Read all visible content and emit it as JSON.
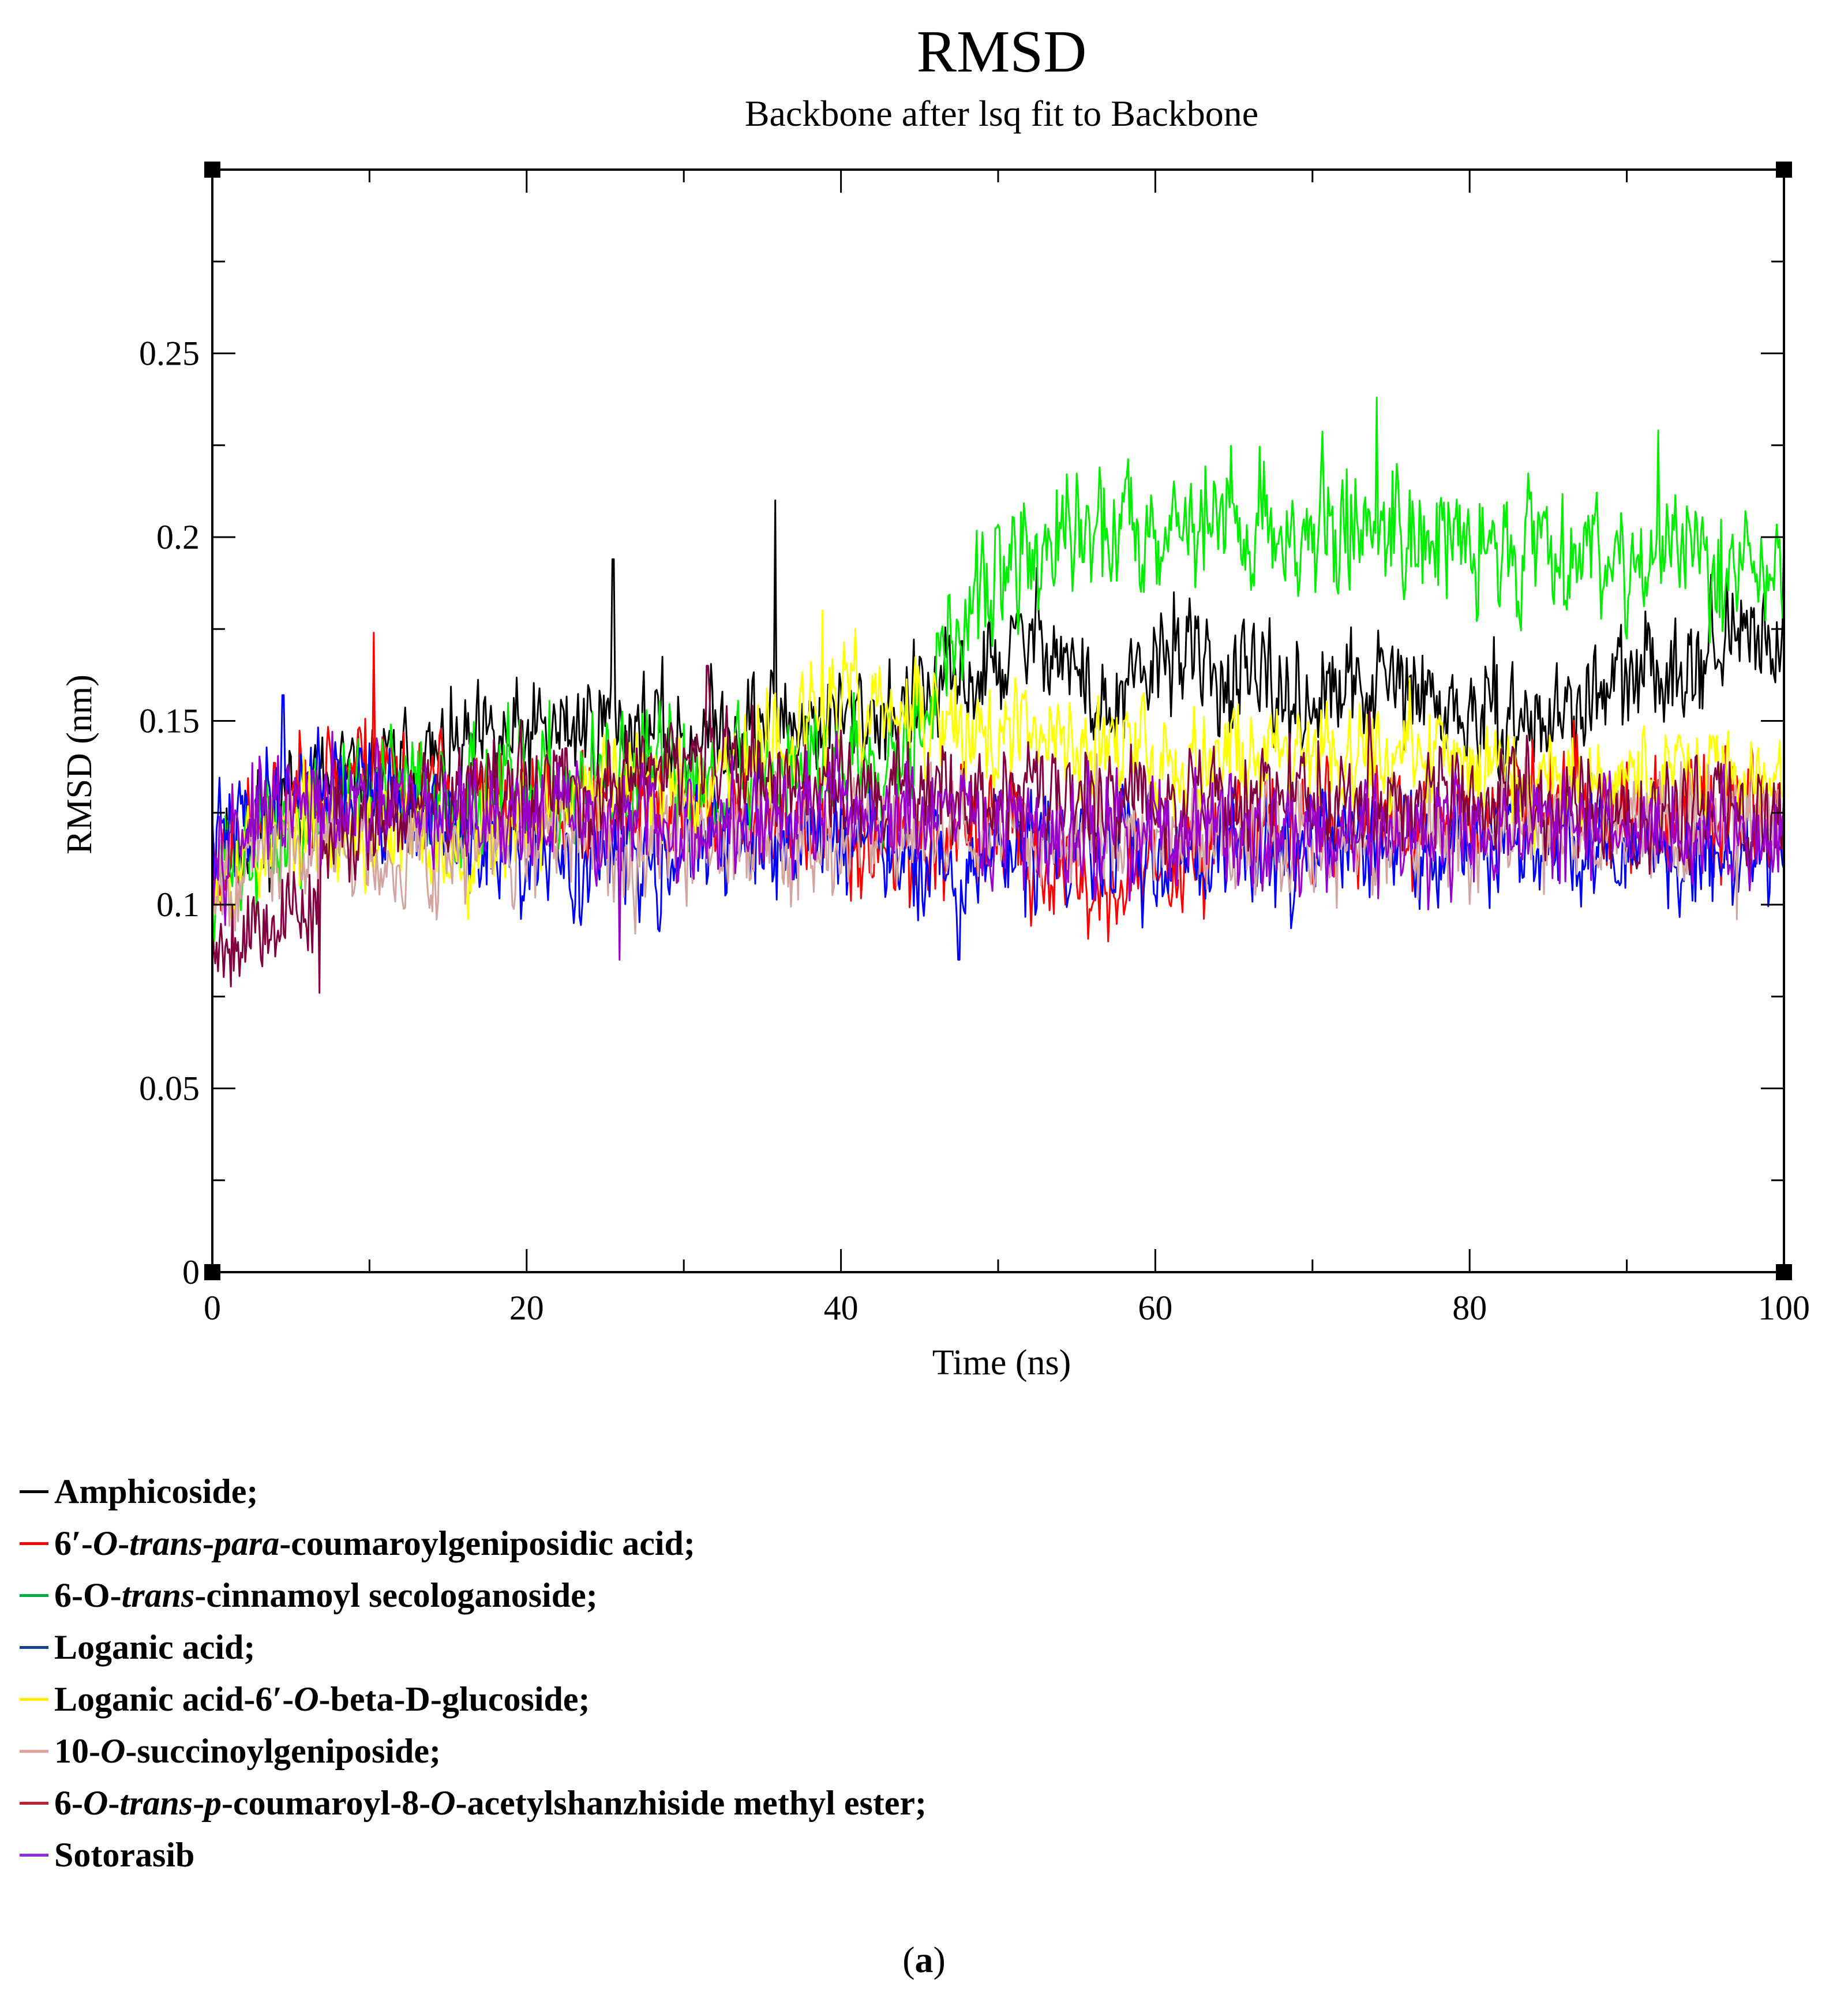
{
  "chart_data": {
    "type": "line",
    "title": "RMSD",
    "subtitle": "Backbone after lsq fit to Backbone",
    "xlabel": "Time (ns)",
    "ylabel": "RMSD (nm)",
    "xlim": [
      0,
      100
    ],
    "ylim": [
      0,
      0.3
    ],
    "xticks": [
      0,
      20,
      40,
      60,
      80,
      100
    ],
    "xtick_labels": [
      "0",
      "20",
      "40",
      "60",
      "80",
      "100"
    ],
    "yticks": [
      0,
      0.05,
      0.1,
      0.15,
      0.2,
      0.25
    ],
    "ytick_labels": [
      "0",
      "0.05",
      "0.1",
      "0.15",
      "0.2",
      "0.25"
    ],
    "x_minor_step": 10,
    "y_minor_step": 0.025,
    "legend_position": "below",
    "series": [
      {
        "name": "Amphicoside",
        "color": "#000000",
        "noise": 0.011,
        "seed": 11,
        "keyframes": [
          [
            0,
            0.11
          ],
          [
            5,
            0.13
          ],
          [
            10,
            0.135
          ],
          [
            15,
            0.14
          ],
          [
            20,
            0.145
          ],
          [
            25,
            0.15
          ],
          [
            30,
            0.145
          ],
          [
            35,
            0.15
          ],
          [
            40,
            0.15
          ],
          [
            45,
            0.155
          ],
          [
            50,
            0.165
          ],
          [
            53,
            0.175
          ],
          [
            57,
            0.15
          ],
          [
            61,
            0.17
          ],
          [
            65,
            0.16
          ],
          [
            70,
            0.155
          ],
          [
            75,
            0.16
          ],
          [
            80,
            0.15
          ],
          [
            85,
            0.15
          ],
          [
            90,
            0.16
          ],
          [
            95,
            0.17
          ],
          [
            100,
            0.175
          ]
        ],
        "spikes": [
          [
            25.5,
            0.194
          ],
          [
            35.8,
            0.21
          ],
          [
            61.2,
            0.185
          ],
          [
            100,
            0.2
          ]
        ]
      },
      {
        "name": "6′-O-trans-para-coumaroylgeniposidic acid",
        "color": "#ff0000",
        "noise": 0.011,
        "seed": 23,
        "keyframes": [
          [
            0,
            0.11
          ],
          [
            5,
            0.13
          ],
          [
            10,
            0.14
          ],
          [
            15,
            0.13
          ],
          [
            20,
            0.125
          ],
          [
            30,
            0.125
          ],
          [
            40,
            0.12
          ],
          [
            45,
            0.115
          ],
          [
            50,
            0.12
          ],
          [
            55,
            0.105
          ],
          [
            60,
            0.11
          ],
          [
            65,
            0.12
          ],
          [
            70,
            0.12
          ],
          [
            80,
            0.125
          ],
          [
            85,
            0.13
          ],
          [
            90,
            0.125
          ],
          [
            95,
            0.125
          ],
          [
            100,
            0.125
          ]
        ],
        "spikes": [
          [
            10.3,
            0.174
          ],
          [
            57,
            0.09
          ]
        ]
      },
      {
        "name": "6-O-trans-cinnamoyl secologanoside",
        "color": "#00ee00",
        "noise": 0.013,
        "seed": 37,
        "keyframes": [
          [
            0,
            0.11
          ],
          [
            5,
            0.12
          ],
          [
            10,
            0.13
          ],
          [
            20,
            0.13
          ],
          [
            30,
            0.135
          ],
          [
            40,
            0.14
          ],
          [
            44,
            0.145
          ],
          [
            47,
            0.17
          ],
          [
            50,
            0.19
          ],
          [
            55,
            0.2
          ],
          [
            60,
            0.205
          ],
          [
            65,
            0.205
          ],
          [
            70,
            0.2
          ],
          [
            75,
            0.205
          ],
          [
            80,
            0.195
          ],
          [
            85,
            0.2
          ],
          [
            90,
            0.195
          ],
          [
            95,
            0.195
          ],
          [
            100,
            0.19
          ]
        ],
        "spikes": [
          [
            74.1,
            0.238
          ],
          [
            92,
            0.229
          ]
        ]
      },
      {
        "name": "Loganic acid",
        "color": "#0000ff",
        "noise": 0.011,
        "seed": 41,
        "keyframes": [
          [
            0,
            0.115
          ],
          [
            5,
            0.135
          ],
          [
            10,
            0.13
          ],
          [
            20,
            0.11
          ],
          [
            30,
            0.115
          ],
          [
            40,
            0.12
          ],
          [
            47,
            0.105
          ],
          [
            50,
            0.115
          ],
          [
            60,
            0.115
          ],
          [
            70,
            0.115
          ],
          [
            80,
            0.115
          ],
          [
            90,
            0.115
          ],
          [
            100,
            0.115
          ]
        ],
        "spikes": [
          [
            47.5,
            0.085
          ],
          [
            4.5,
            0.157
          ]
        ]
      },
      {
        "name": "Loganic acid-6′-O-beta-D-glucoside",
        "color": "#ffff00",
        "noise": 0.011,
        "seed": 53,
        "keyframes": [
          [
            0,
            0.11
          ],
          [
            5,
            0.12
          ],
          [
            10,
            0.12
          ],
          [
            15,
            0.115
          ],
          [
            20,
            0.125
          ],
          [
            30,
            0.135
          ],
          [
            35,
            0.14
          ],
          [
            40,
            0.155
          ],
          [
            45,
            0.15
          ],
          [
            50,
            0.145
          ],
          [
            55,
            0.145
          ],
          [
            60,
            0.14
          ],
          [
            65,
            0.14
          ],
          [
            70,
            0.145
          ],
          [
            75,
            0.14
          ],
          [
            80,
            0.14
          ],
          [
            85,
            0.135
          ],
          [
            90,
            0.135
          ],
          [
            95,
            0.135
          ],
          [
            100,
            0.135
          ]
        ],
        "spikes": [
          [
            38.8,
            0.18
          ]
        ]
      },
      {
        "name": "10-O-succinoylgeniposide",
        "color": "#d4a5a0",
        "noise": 0.011,
        "seed": 67,
        "keyframes": [
          [
            0,
            0.11
          ],
          [
            5,
            0.115
          ],
          [
            10,
            0.115
          ],
          [
            20,
            0.115
          ],
          [
            30,
            0.12
          ],
          [
            40,
            0.12
          ],
          [
            50,
            0.12
          ],
          [
            60,
            0.12
          ],
          [
            70,
            0.115
          ],
          [
            80,
            0.12
          ],
          [
            90,
            0.12
          ],
          [
            100,
            0.125
          ]
        ],
        "spikes": [
          [
            97,
            0.096
          ]
        ]
      },
      {
        "name": "6-O-trans-p-coumaroyl-8-O-acetylshanzhiside methyl ester",
        "color": "#800040",
        "noise": 0.011,
        "seed": 79,
        "keyframes": [
          [
            0,
            0.09
          ],
          [
            3,
            0.095
          ],
          [
            6,
            0.1
          ],
          [
            8,
            0.12
          ],
          [
            10,
            0.125
          ],
          [
            15,
            0.13
          ],
          [
            20,
            0.13
          ],
          [
            25,
            0.13
          ],
          [
            30,
            0.14
          ],
          [
            35,
            0.135
          ],
          [
            40,
            0.13
          ],
          [
            50,
            0.13
          ],
          [
            60,
            0.13
          ],
          [
            70,
            0.13
          ],
          [
            80,
            0.13
          ],
          [
            90,
            0.125
          ],
          [
            100,
            0.125
          ]
        ],
        "spikes": [
          [
            6.8,
            0.076
          ],
          [
            31.5,
            0.165
          ]
        ]
      },
      {
        "name": "Sotorasib",
        "color": "#9900cc",
        "noise": 0.011,
        "seed": 97,
        "keyframes": [
          [
            0,
            0.12
          ],
          [
            5,
            0.125
          ],
          [
            10,
            0.125
          ],
          [
            20,
            0.125
          ],
          [
            30,
            0.12
          ],
          [
            40,
            0.125
          ],
          [
            50,
            0.12
          ],
          [
            60,
            0.12
          ],
          [
            70,
            0.12
          ],
          [
            80,
            0.12
          ],
          [
            90,
            0.12
          ],
          [
            100,
            0.12
          ]
        ],
        "spikes": [
          [
            25.9,
            0.085
          ]
        ]
      }
    ]
  },
  "legend": {
    "amphicoside": "Amphicoside;",
    "coumaroyl_prefix": "6′-",
    "coumaroyl_o": "O",
    "coumaroyl_dash1": "-",
    "coumaroyl_trans": "trans",
    "coumaroyl_dash2": "-",
    "coumaroyl_para": "para",
    "coumaroyl_rest": "-coumaroylgeniposidic acid;",
    "cinnamoyl_prefix": "6-O-",
    "cinnamoyl_trans": "trans",
    "cinnamoyl_rest": "-cinnamoyl secologanoside;",
    "loganic": "Loganic acid;",
    "glucoside_prefix": "Loganic acid-6′-",
    "glucoside_o": "O",
    "glucoside_mid": "-beta-",
    "glucoside_d": "D",
    "glucoside_rest": "-glucoside;",
    "succinoyl_prefix": "10-",
    "succinoyl_o": "O",
    "succinoyl_rest": "-succinoylgeniposide;",
    "shanz_prefix": "6-",
    "shanz_o1": "O",
    "shanz_dash1": "-",
    "shanz_trans": "trans",
    "shanz_dash2": "-",
    "shanz_p": "p",
    "shanz_mid": "-coumaroyl-8-",
    "shanz_o2": "O",
    "shanz_rest": "-acetylshanzhiside methyl ester;",
    "sotorasib": "Sotorasib"
  },
  "caption": {
    "open": "(",
    "letter": "a",
    "close": ")"
  }
}
